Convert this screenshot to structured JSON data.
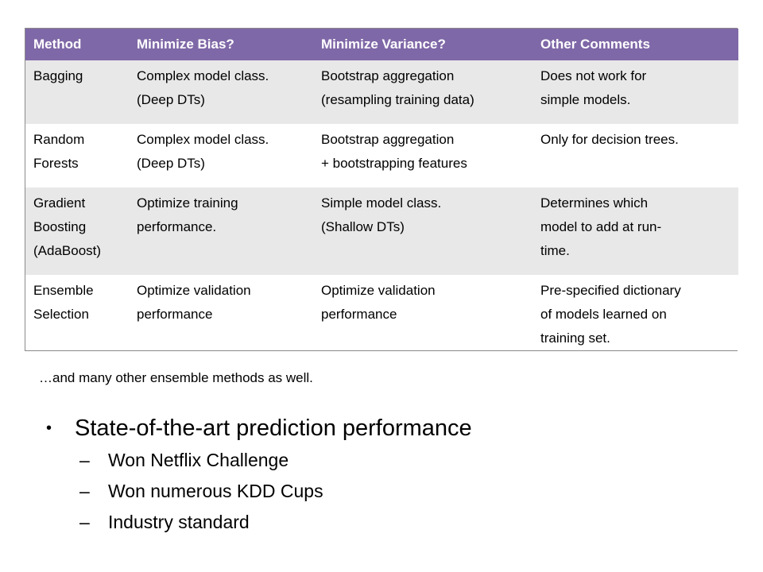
{
  "table": {
    "headers": [
      "Method",
      "Minimize Bias?",
      "Minimize Variance?",
      "Other Comments"
    ],
    "rows": [
      {
        "method": [
          "Bagging"
        ],
        "bias": [
          "Complex model class.",
          "(Deep DTs)"
        ],
        "variance": [
          "Bootstrap aggregation",
          "(resampling training data)"
        ],
        "comments": [
          "Does not work for",
          "simple models."
        ]
      },
      {
        "method": [
          "Random",
          "Forests"
        ],
        "bias": [
          "Complex model class.",
          "(Deep DTs)"
        ],
        "variance": [
          "Bootstrap aggregation",
          "+ bootstrapping features"
        ],
        "comments": [
          "Only for decision trees."
        ]
      },
      {
        "method": [
          "Gradient",
          "Boosting",
          "(AdaBoost)"
        ],
        "bias": [
          "Optimize training",
          "performance."
        ],
        "variance": [
          "Simple model class.",
          "(Shallow DTs)"
        ],
        "comments": [
          "Determines which",
          "model to add at run-",
          "time."
        ]
      },
      {
        "method": [
          "Ensemble",
          "Selection"
        ],
        "bias": [
          "Optimize validation",
          "performance"
        ],
        "variance": [
          "Optimize validation",
          "performance"
        ],
        "comments": [
          "Pre-specified dictionary",
          "of models learned on",
          "training set."
        ]
      }
    ]
  },
  "footnote": "…and many other ensemble methods as well.",
  "bullets": {
    "main": "State-of-the-art prediction performance",
    "bullet_glyph": "•",
    "dash_glyph": "–",
    "sub": [
      "Won Netflix Challenge",
      "Won numerous KDD Cups",
      "Industry standard"
    ]
  }
}
